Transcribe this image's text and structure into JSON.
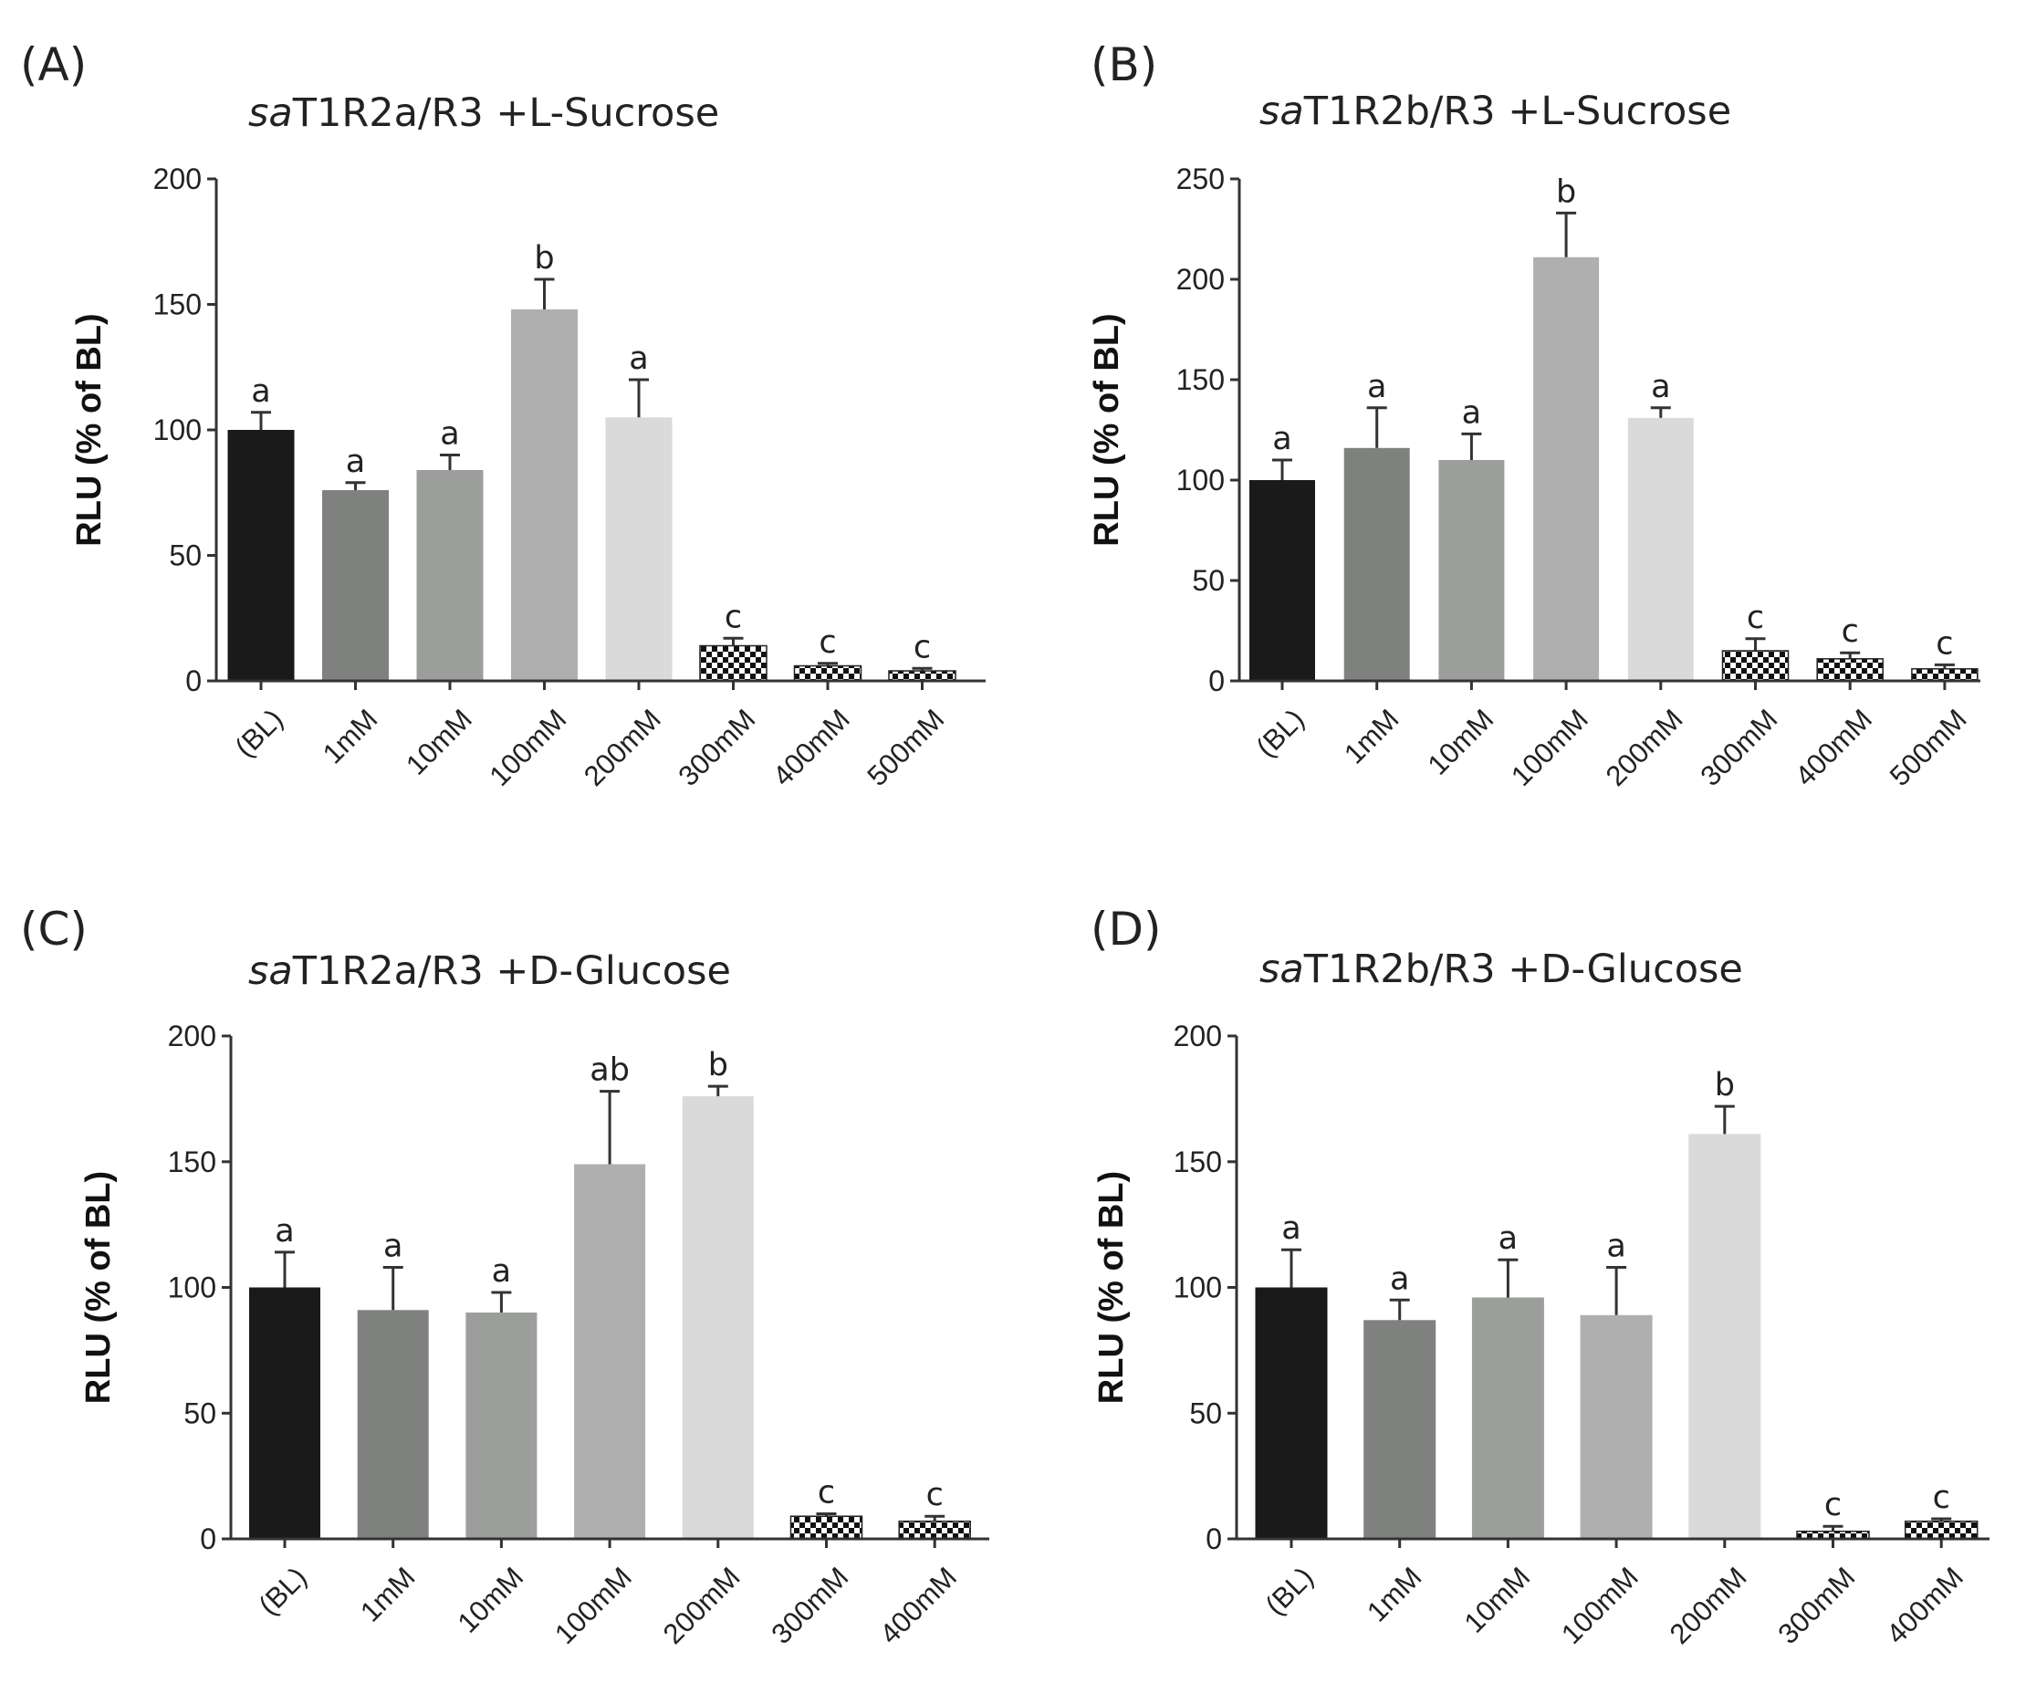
{
  "colors": {
    "axis": "#333333",
    "bar_fill": [
      "#1a1a1a",
      "#7f817f",
      "#9c9e9c",
      "#aeafae",
      "#d9dad9"
    ],
    "checker_dark": "#111111",
    "checker_light": "#ffffff"
  },
  "chart_data": [
    {
      "type": "bar",
      "panel_label": "(A)",
      "title": "saT1R2a/R3 +L-Sucrose",
      "title_italic_prefix": "sa",
      "title_rest": "T1R2a/R3 +L-Sucrose",
      "ylabel": "RLU (% of BL)",
      "xlabel": "",
      "ylim": [
        0,
        200
      ],
      "yticks": [
        0,
        50,
        100,
        150,
        200
      ],
      "categories": [
        "(BL)",
        "1mM",
        "10mM",
        "100mM",
        "200mM",
        "300mM",
        "400mM",
        "500mM"
      ],
      "values": [
        100,
        76,
        84,
        148,
        105,
        14,
        6,
        4
      ],
      "errors": [
        7,
        3,
        6,
        12,
        15,
        3,
        1,
        1
      ],
      "significance": [
        "a",
        "a",
        "a",
        "b",
        "a",
        "c",
        "c",
        "c"
      ],
      "patterned": [
        false,
        false,
        false,
        false,
        false,
        true,
        true,
        true
      ]
    },
    {
      "type": "bar",
      "panel_label": "(B)",
      "title": "saT1R2b/R3 +L-Sucrose",
      "title_italic_prefix": "sa",
      "title_rest": "T1R2b/R3 +L-Sucrose",
      "ylabel": "RLU (% of BL)",
      "xlabel": "",
      "ylim": [
        0,
        250
      ],
      "yticks": [
        0,
        50,
        100,
        150,
        200,
        250
      ],
      "categories": [
        "(BL)",
        "1mM",
        "10mM",
        "100mM",
        "200mM",
        "300mM",
        "400mM",
        "500mM"
      ],
      "values": [
        100,
        116,
        110,
        211,
        131,
        15,
        11,
        6
      ],
      "errors": [
        10,
        20,
        13,
        22,
        5,
        6,
        3,
        2
      ],
      "significance": [
        "a",
        "a",
        "a",
        "b",
        "a",
        "c",
        "c",
        "c"
      ],
      "patterned": [
        false,
        false,
        false,
        false,
        false,
        true,
        true,
        true
      ]
    },
    {
      "type": "bar",
      "panel_label": "(C)",
      "title": "saT1R2a/R3 +D-Glucose",
      "title_italic_prefix": "sa",
      "title_rest": "T1R2a/R3 +D-Glucose",
      "ylabel": "RLU (% of BL)",
      "xlabel": "",
      "ylim": [
        0,
        200
      ],
      "yticks": [
        0,
        50,
        100,
        150,
        200
      ],
      "categories": [
        "(BL)",
        "1mM",
        "10mM",
        "100mM",
        "200mM",
        "300mM",
        "400mM"
      ],
      "values": [
        100,
        91,
        90,
        149,
        176,
        9,
        7
      ],
      "errors": [
        14,
        17,
        8,
        29,
        4,
        1,
        2
      ],
      "significance": [
        "a",
        "a",
        "a",
        "ab",
        "b",
        "c",
        "c"
      ],
      "patterned": [
        false,
        false,
        false,
        false,
        false,
        true,
        true
      ]
    },
    {
      "type": "bar",
      "panel_label": "(D)",
      "title": "saT1R2b/R3 +D-Glucose",
      "title_italic_prefix": "sa",
      "title_rest": "T1R2b/R3 +D-Glucose",
      "ylabel": "RLU (% of BL)",
      "xlabel": "",
      "ylim": [
        0,
        200
      ],
      "yticks": [
        0,
        50,
        100,
        150,
        200
      ],
      "categories": [
        "(BL)",
        "1mM",
        "10mM",
        "100mM",
        "200mM",
        "300mM",
        "400mM"
      ],
      "values": [
        100,
        87,
        96,
        89,
        161,
        3,
        7
      ],
      "errors": [
        15,
        8,
        15,
        19,
        11,
        2,
        1
      ],
      "significance": [
        "a",
        "a",
        "a",
        "a",
        "b",
        "c",
        "c"
      ],
      "patterned": [
        false,
        false,
        false,
        false,
        false,
        true,
        true
      ]
    }
  ]
}
